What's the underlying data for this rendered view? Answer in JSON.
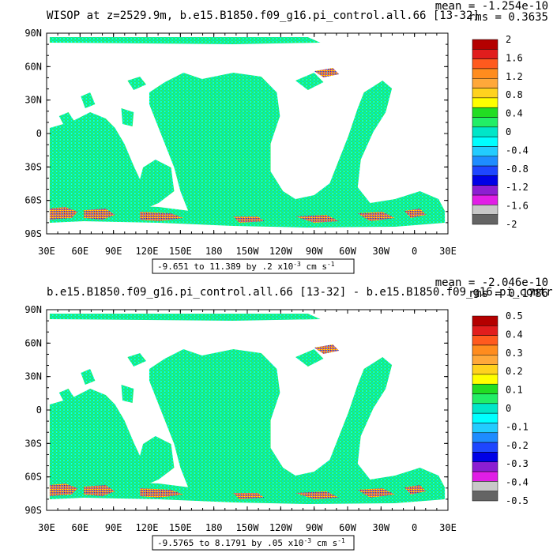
{
  "chart_data": [
    {
      "type": "heatmap",
      "title": "WISOP at z=2529.9m, b.e15.B1850.f09_g16.pi_control.all.66 [13-32]",
      "stats": {
        "mean": "mean = -1.254e-10",
        "rms": "rms = 0.3635"
      },
      "x_ticks": [
        "30E",
        "60E",
        "90E",
        "120E",
        "150E",
        "180",
        "150W",
        "120W",
        "90W",
        "60W",
        "30W",
        "0",
        "30E"
      ],
      "y_ticks": [
        "90N",
        "60N",
        "30N",
        "0",
        "30S",
        "60S",
        "90S"
      ],
      "range_text": {
        "main": "-9.651 to 11.389 by .2 x10",
        "exp": "-3",
        "unit": " cm s",
        "unit_exp": "-1"
      },
      "colorbar": {
        "labels": [
          "2",
          "1.6",
          "1.2",
          "0.8",
          "0.4",
          "0",
          "-0.4",
          "-0.8",
          "-1.2",
          "-1.6",
          "-2"
        ],
        "colors": [
          "#b40000",
          "#e11d1d",
          "#ff5a1e",
          "#ff8c1e",
          "#ffa83a",
          "#ffd21e",
          "#ffff00",
          "#22dd22",
          "#22ee66",
          "#00e6c8",
          "#00ffff",
          "#22ccff",
          "#1e8cff",
          "#1e46ff",
          "#0000e6",
          "#8c1ed2",
          "#e11ee6",
          "#c8c8c8",
          "#646464"
        ]
      }
    },
    {
      "type": "heatmap",
      "title": "b.e15.B1850.f09_g16.pi_control.all.66 [13-32] - b.e15.B1850.f09_g16.pi_control",
      "stats": {
        "mean": "mean = -2.046e-10",
        "rms": "rms = 0.1786"
      },
      "x_ticks": [
        "30E",
        "60E",
        "90E",
        "120E",
        "150E",
        "180",
        "150W",
        "120W",
        "90W",
        "60W",
        "30W",
        "0",
        "30E"
      ],
      "y_ticks": [
        "90N",
        "60N",
        "30N",
        "0",
        "30S",
        "60S",
        "90S"
      ],
      "range_text": {
        "main": "-9.5765 to 8.1791 by .05 x10",
        "exp": "-3",
        "unit": " cm s",
        "unit_exp": "-1"
      },
      "colorbar": {
        "labels": [
          "0.5",
          "0.4",
          "0.3",
          "0.2",
          "0.1",
          "0",
          "-0.1",
          "-0.2",
          "-0.3",
          "-0.4",
          "-0.5"
        ],
        "colors": [
          "#b40000",
          "#e11d1d",
          "#ff5a1e",
          "#ff8c1e",
          "#ffa83a",
          "#ffd21e",
          "#ffff00",
          "#22dd22",
          "#22ee66",
          "#00e6c8",
          "#00ffff",
          "#22ccff",
          "#1e8cff",
          "#1e46ff",
          "#0000e6",
          "#8c1ed2",
          "#e11ee6",
          "#c8c8c8",
          "#646464"
        ]
      }
    }
  ]
}
